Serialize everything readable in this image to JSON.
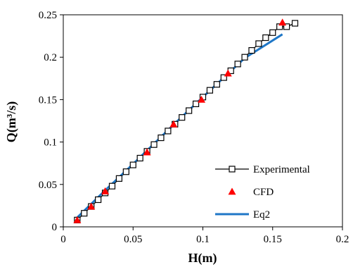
{
  "chart_data": {
    "type": "line",
    "xlabel": "H(m)",
    "ylabel": "Q(m³/s)",
    "xlim": [
      0,
      0.2
    ],
    "ylim": [
      0,
      0.25
    ],
    "x_ticks": [
      "0",
      "0.05",
      "0.1",
      "0.15",
      "0.2"
    ],
    "y_ticks": [
      "0",
      "0.05",
      "0.1",
      "0.15",
      "0.2",
      "0.25"
    ],
    "grid": false,
    "legend_position": "bottom-right",
    "series": [
      {
        "name": "Experimental",
        "kind": "line-marker",
        "marker": "open-square",
        "color": "#000000",
        "x": [
          0.01,
          0.015,
          0.02,
          0.025,
          0.03,
          0.035,
          0.04,
          0.045,
          0.05,
          0.055,
          0.06,
          0.065,
          0.07,
          0.075,
          0.08,
          0.085,
          0.09,
          0.095,
          0.1,
          0.105,
          0.11,
          0.115,
          0.12,
          0.125,
          0.13,
          0.135,
          0.14,
          0.145,
          0.15,
          0.155,
          0.16,
          0.166
        ],
        "y": [
          0.008,
          0.016,
          0.024,
          0.032,
          0.04,
          0.048,
          0.057,
          0.065,
          0.073,
          0.081,
          0.089,
          0.097,
          0.105,
          0.113,
          0.121,
          0.129,
          0.137,
          0.145,
          0.153,
          0.161,
          0.168,
          0.176,
          0.184,
          0.192,
          0.2,
          0.208,
          0.216,
          0.223,
          0.229,
          0.236,
          0.236,
          0.24
        ]
      },
      {
        "name": "CFD",
        "kind": "scatter",
        "marker": "filled-triangle",
        "color": "#ff0000",
        "x": [
          0.01,
          0.02,
          0.03,
          0.06,
          0.079,
          0.099,
          0.118,
          0.157
        ],
        "y": [
          0.008,
          0.024,
          0.042,
          0.088,
          0.121,
          0.15,
          0.181,
          0.241
        ]
      },
      {
        "name": "Eq2",
        "kind": "line",
        "color": "#1f77c7",
        "x": [
          0.01,
          0.03,
          0.05,
          0.08,
          0.1,
          0.13,
          0.157
        ],
        "y": [
          0.011,
          0.043,
          0.074,
          0.122,
          0.153,
          0.199,
          0.227
        ]
      }
    ]
  }
}
